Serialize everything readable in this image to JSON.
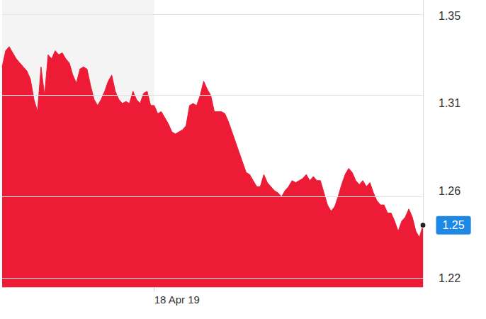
{
  "chart_data": {
    "type": "area",
    "color": "#ed1b36",
    "categories": [
      null,
      null,
      null,
      null,
      null,
      null,
      null,
      null,
      null,
      null,
      null,
      null,
      null,
      null,
      null,
      null,
      null,
      null,
      null,
      null,
      null,
      null,
      null,
      null,
      null,
      null,
      null,
      null,
      null,
      null,
      null,
      null,
      null,
      null,
      null,
      null,
      null,
      null,
      null,
      null,
      null,
      null,
      null,
      "18 Apr 19",
      null,
      null,
      null,
      null,
      null,
      null,
      null,
      null,
      null,
      null,
      null,
      null,
      null,
      null,
      null,
      null,
      null,
      null,
      null,
      null,
      null,
      null,
      null,
      null,
      null,
      null,
      null,
      null,
      null,
      null,
      null,
      null,
      null,
      null,
      null,
      null,
      null,
      null,
      null,
      null,
      null,
      null,
      null,
      null,
      null,
      null,
      null,
      null,
      null,
      null,
      null,
      null,
      null,
      null,
      null,
      null,
      null,
      null,
      null,
      null,
      null,
      null,
      null,
      null,
      null,
      null,
      null,
      null,
      null,
      null,
      null,
      null,
      null,
      null,
      null,
      null
    ],
    "values": [
      1.324,
      1.332,
      1.334,
      1.331,
      1.328,
      1.326,
      1.324,
      1.322,
      1.318,
      1.308,
      1.302,
      1.324,
      1.31,
      1.33,
      1.328,
      1.332,
      1.33,
      1.331,
      1.328,
      1.326,
      1.32,
      1.316,
      1.323,
      1.324,
      1.323,
      1.315,
      1.308,
      1.305,
      1.308,
      1.312,
      1.317,
      1.32,
      1.312,
      1.308,
      1.306,
      1.307,
      1.306,
      1.312,
      1.308,
      1.306,
      1.311,
      1.312,
      1.305,
      1.305,
      1.301,
      1.302,
      1.299,
      1.296,
      1.292,
      1.291,
      1.292,
      1.293,
      1.295,
      1.305,
      1.306,
      1.305,
      1.31,
      1.317,
      1.313,
      1.31,
      1.302,
      1.302,
      1.302,
      1.301,
      1.297,
      1.292,
      1.287,
      1.282,
      1.277,
      1.272,
      1.271,
      1.268,
      1.265,
      1.265,
      1.271,
      1.267,
      1.265,
      1.263,
      1.262,
      1.26,
      1.263,
      1.265,
      1.268,
      1.267,
      1.268,
      1.269,
      1.271,
      1.268,
      1.27,
      1.268,
      1.268,
      1.262,
      1.256,
      1.253,
      1.255,
      1.26,
      1.266,
      1.271,
      1.274,
      1.272,
      1.268,
      1.266,
      1.268,
      1.265,
      1.267,
      1.262,
      1.258,
      1.256,
      1.256,
      1.252,
      1.252,
      1.248,
      1.243,
      1.248,
      1.25,
      1.254,
      1.25,
      1.243,
      1.24,
      1.246
    ],
    "ylim": [
      1.2155,
      1.357
    ],
    "yticks": [
      {
        "value": 1.22,
        "label": "1.22"
      },
      {
        "value": 1.263,
        "label": "1.26"
      },
      {
        "value": 1.306,
        "label": "1.31"
      },
      {
        "value": 1.349,
        "label": "1.35"
      }
    ],
    "grid": true,
    "annotations": [
      {
        "value": 1.246,
        "label": "1.25"
      }
    ]
  }
}
